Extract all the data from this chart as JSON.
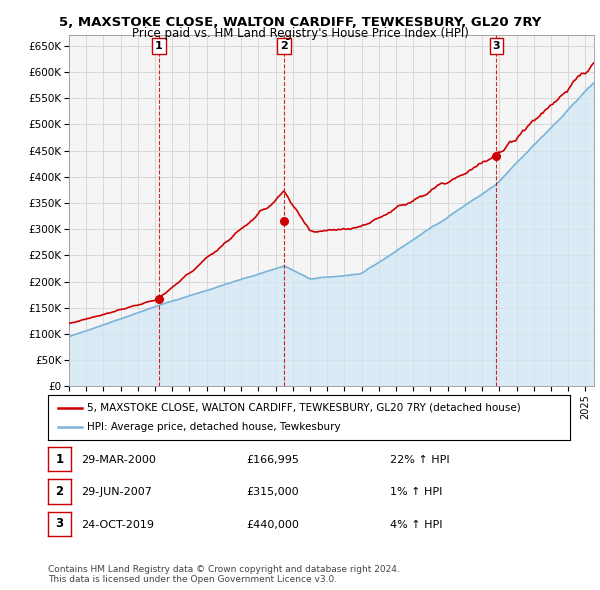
{
  "title": "5, MAXSTOKE CLOSE, WALTON CARDIFF, TEWKESBURY, GL20 7RY",
  "subtitle": "Price paid vs. HM Land Registry's House Price Index (HPI)",
  "ylim": [
    0,
    670000
  ],
  "yticks": [
    0,
    50000,
    100000,
    150000,
    200000,
    250000,
    300000,
    350000,
    400000,
    450000,
    500000,
    550000,
    600000,
    650000
  ],
  "ytick_labels": [
    "£0",
    "£50K",
    "£100K",
    "£150K",
    "£200K",
    "£250K",
    "£300K",
    "£350K",
    "£400K",
    "£450K",
    "£500K",
    "£550K",
    "£600K",
    "£650K"
  ],
  "hpi_color": "#7ab4d8",
  "hpi_fill_color": "#d0e8f5",
  "price_color": "#cc0000",
  "vline_color": "#cc0000",
  "grid_color": "#cccccc",
  "bg_color": "#f5f5f5",
  "sales": [
    {
      "label": "1",
      "date_x": 2000.23,
      "price": 166995
    },
    {
      "label": "2",
      "date_x": 2007.49,
      "price": 315000
    },
    {
      "label": "3",
      "date_x": 2019.82,
      "price": 440000
    }
  ],
  "table_rows": [
    {
      "num": "1",
      "date": "29-MAR-2000",
      "price": "£166,995",
      "hpi": "22% ↑ HPI"
    },
    {
      "num": "2",
      "date": "29-JUN-2007",
      "price": "£315,000",
      "hpi": "1% ↑ HPI"
    },
    {
      "num": "3",
      "date": "24-OCT-2019",
      "price": "£440,000",
      "hpi": "4% ↑ HPI"
    }
  ],
  "legend_line1": "5, MAXSTOKE CLOSE, WALTON CARDIFF, TEWKESBURY, GL20 7RY (detached house)",
  "legend_line2": "HPI: Average price, detached house, Tewkesbury",
  "footnote": "Contains HM Land Registry data © Crown copyright and database right 2024.\nThis data is licensed under the Open Government Licence v3.0.",
  "xmin": 1995.0,
  "xmax": 2025.5
}
